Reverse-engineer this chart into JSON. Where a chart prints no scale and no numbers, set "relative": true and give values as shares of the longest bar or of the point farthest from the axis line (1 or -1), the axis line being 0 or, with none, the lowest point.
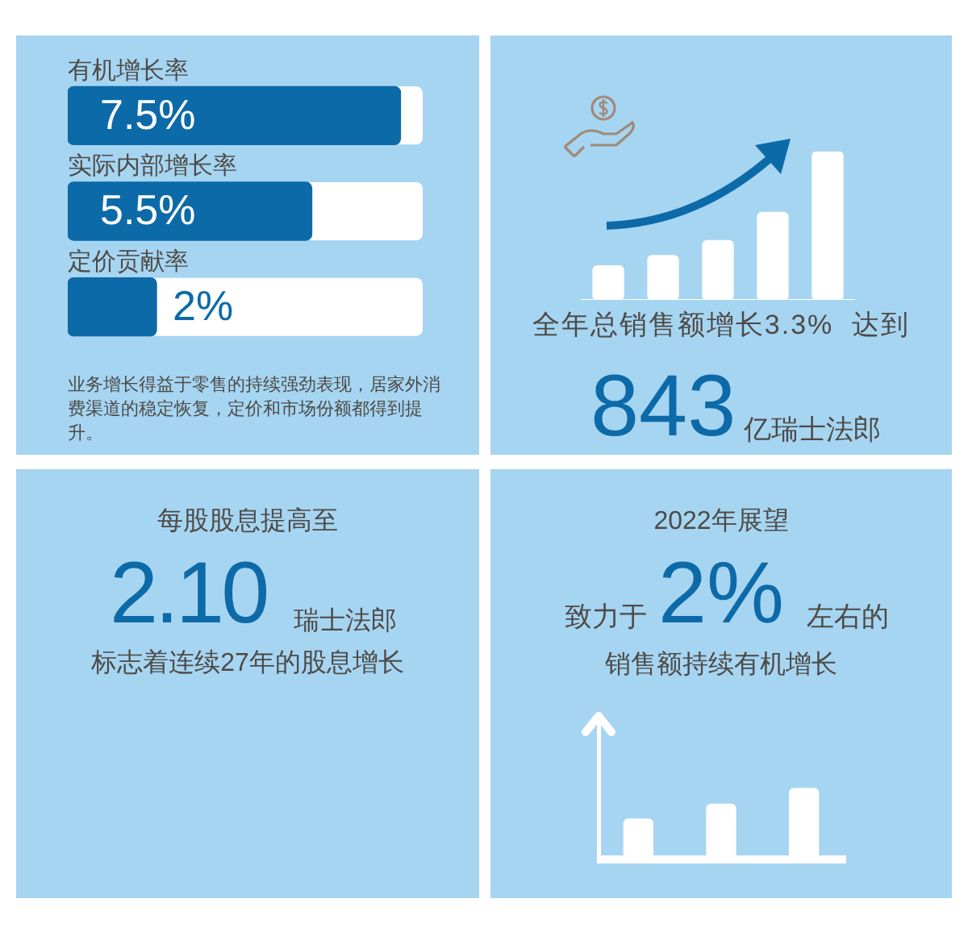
{
  "chart_data": [
    {
      "type": "bar",
      "orientation": "horizontal",
      "categories": [
        "有机增长率",
        "实际内部增长率",
        "定价贡献率"
      ],
      "values": [
        7.5,
        5.5,
        2
      ],
      "value_labels": [
        "7.5%",
        "5.5%",
        "2%"
      ],
      "color": "#0d6aa8",
      "tick_labels": false,
      "annotations": [
        "业务增长得益于零售的持续强劲表现，居家外消费渠道的稳定恢复，定价和市场份额都得到提升。"
      ]
    },
    {
      "type": "bar",
      "relative": true,
      "categories": [
        null,
        null,
        null,
        null,
        null
      ],
      "values": [
        0.23,
        0.3,
        0.4,
        0.59,
        1
      ],
      "color": "#ffffff",
      "annotations": [
        "全年总销售额增长3.3%  达到",
        "843",
        "亿瑞士法郎"
      ]
    },
    {
      "type": "other",
      "title": "每股股息提高至",
      "annotations": [
        "2.10",
        "瑞士法郎",
        "标志着连续27年的股息增长"
      ]
    },
    {
      "type": "bar",
      "relative": true,
      "title": "2022年展望",
      "categories": [
        null,
        null,
        null
      ],
      "values": [
        0.57,
        0.78,
        1
      ],
      "color": "#ffffff",
      "annotations": [
        "致力于",
        "2%",
        "左右的",
        "销售额持续有机增长"
      ]
    }
  ]
}
